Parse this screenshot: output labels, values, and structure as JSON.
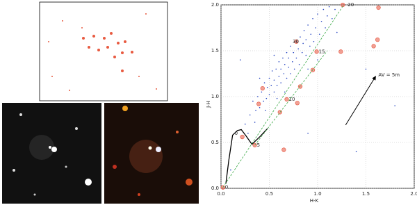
{
  "chart_data": {
    "type": "scatter",
    "xlabel": "H-K",
    "ylabel": "J-H",
    "xlim": [
      0,
      2
    ],
    "ylim": [
      0,
      2
    ],
    "xticks": [
      {
        "value": 0,
        "label": "0.0"
      },
      {
        "value": 0.5,
        "label": "0.5"
      },
      {
        "value": 1,
        "label": "1.0"
      },
      {
        "value": 1.5,
        "label": "1.5"
      },
      {
        "value": 2,
        "label": "2.0"
      }
    ],
    "yticks": [
      {
        "value": 0,
        "label": "0.0"
      },
      {
        "value": 0.5,
        "label": "0.5"
      },
      {
        "value": 1,
        "label": "1.0"
      },
      {
        "value": 1.5,
        "label": "1.5"
      },
      {
        "value": 2,
        "label": "2.0"
      }
    ],
    "grid": true,
    "series": [
      {
        "style": "dot",
        "color": "#1f3fbf",
        "x": [
          0.3,
          0.33,
          0.35,
          0.38,
          0.4,
          0.42,
          0.44,
          0.45,
          0.47,
          0.48,
          0.5,
          0.5,
          0.52,
          0.53,
          0.55,
          0.55,
          0.57,
          0.58,
          0.6,
          0.6,
          0.62,
          0.62,
          0.64,
          0.65,
          0.66,
          0.68,
          0.68,
          0.7,
          0.7,
          0.72,
          0.72,
          0.74,
          0.75,
          0.76,
          0.78,
          0.78,
          0.8,
          0.81,
          0.82,
          0.84,
          0.85,
          0.86,
          0.88,
          0.88,
          0.9,
          0.92,
          0.93,
          0.95,
          0.96,
          0.98,
          1.0,
          1.02,
          1.04,
          1.06,
          1.08,
          1.1,
          1.12,
          1.15,
          1.18,
          0.36,
          0.46,
          0.58,
          0.66,
          0.9,
          1.0,
          0.25,
          0.28,
          1.2,
          0.4,
          0.55,
          1.5,
          1.8,
          0.2,
          0.9,
          1.4,
          0.1
        ],
        "values": [
          0.8,
          0.95,
          0.72,
          1.0,
          0.88,
          1.05,
          0.95,
          1.15,
          0.98,
          1.1,
          1.02,
          1.2,
          1.12,
          1.28,
          1.05,
          1.18,
          1.3,
          1.12,
          1.22,
          1.38,
          1.15,
          1.3,
          1.42,
          1.25,
          1.35,
          1.2,
          1.48,
          1.32,
          1.42,
          1.25,
          1.55,
          1.38,
          1.48,
          1.3,
          1.6,
          1.42,
          1.52,
          1.35,
          1.65,
          1.48,
          1.58,
          1.72,
          1.45,
          1.62,
          1.78,
          1.55,
          1.68,
          1.85,
          1.6,
          1.75,
          1.9,
          1.68,
          1.82,
          1.95,
          1.75,
          1.88,
          1.98,
          1.85,
          1.95,
          0.85,
          0.85,
          0.98,
          1.05,
          1.3,
          1.4,
          0.7,
          0.6,
          1.7,
          1.2,
          1.45,
          1.3,
          0.9,
          1.4,
          0.6,
          0.4,
          0.2
        ]
      },
      {
        "style": "ring",
        "color": "#e8604c",
        "x": [
          1.26,
          1.63,
          0.78,
          0.99,
          1.24,
          1.58,
          1.62,
          0.95,
          0.82,
          0.43,
          0.79,
          0.68,
          0.61,
          0.65,
          0.22,
          0.35,
          0.02,
          0.39
        ],
        "values": [
          2.0,
          1.97,
          1.6,
          1.49,
          1.49,
          1.55,
          1.62,
          1.29,
          1.11,
          1.09,
          0.93,
          0.97,
          0.83,
          0.42,
          0.56,
          0.47,
          0.01,
          0.92
        ]
      },
      {
        "style": "line",
        "color": "#000000",
        "x": [
          0.05,
          0.08,
          0.12,
          0.17,
          0.21,
          0.26,
          0.32,
          0.4,
          0.48
        ],
        "values": [
          0.05,
          0.3,
          0.58,
          0.63,
          0.64,
          0.57,
          0.48,
          0.56,
          0.65
        ]
      },
      {
        "style": "dashed",
        "color": "#3aa845",
        "x": [
          0.02,
          1.27
        ],
        "values": [
          0.01,
          2.0
        ]
      },
      {
        "style": "dashed",
        "color": "#3aa845",
        "x": [
          0.35,
          1.1
        ],
        "values": [
          0.47,
          1.5
        ]
      }
    ],
    "annotations": [
      {
        "text": "0",
        "x": 0.02,
        "y": 0.01
      },
      {
        "text": "5",
        "x": 0.35,
        "y": 0.47
      },
      {
        "text": "10",
        "x": 0.68,
        "y": 0.97
      },
      {
        "text": "15",
        "x": 0.99,
        "y": 1.49
      },
      {
        "text": "20",
        "x": 1.29,
        "y": 2.0
      },
      {
        "text": "30",
        "x": 0.72,
        "y": 1.6
      },
      {
        "text": "0",
        "x": 0.12,
        "y": 0.6
      }
    ],
    "arrow": {
      "text": "AV = 5m",
      "x": [
        1.29,
        1.6
      ],
      "y": [
        0.69,
        1.22
      ]
    }
  }
}
